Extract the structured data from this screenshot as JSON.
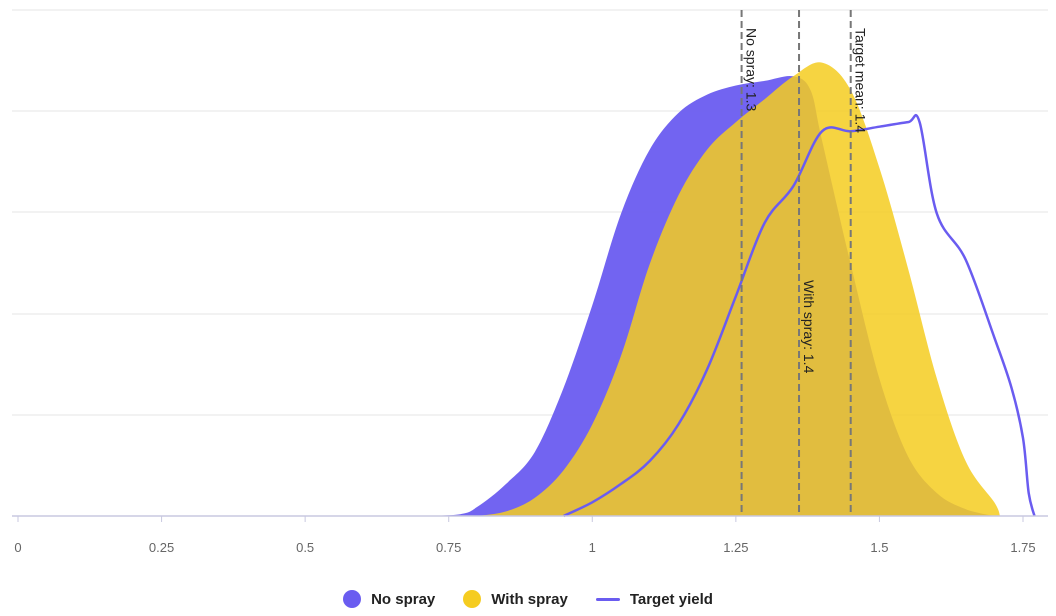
{
  "chart_data": {
    "type": "area",
    "xlim": [
      0,
      1.8
    ],
    "x_ticks": [
      {
        "value": 0,
        "label": "0"
      },
      {
        "value": 0.25,
        "label": "0.25"
      },
      {
        "value": 0.5,
        "label": "0.5"
      },
      {
        "value": 0.75,
        "label": "0.75"
      },
      {
        "value": 1,
        "label": "1"
      },
      {
        "value": 1.25,
        "label": "1.25"
      },
      {
        "value": 1.5,
        "label": "1.5"
      },
      {
        "value": 1.75,
        "label": "1.75"
      }
    ],
    "ylim": [
      0,
      1
    ],
    "grid": true,
    "legend_position": "bottom",
    "series": [
      {
        "name": "No spray",
        "style": "filled-area",
        "color": "#6a5cf0",
        "x": [
          0.7,
          0.77,
          0.8,
          0.85,
          0.9,
          0.95,
          1.0,
          1.05,
          1.1,
          1.15,
          1.2,
          1.25,
          1.3,
          1.35,
          1.38,
          1.4,
          1.45,
          1.5,
          1.55,
          1.6,
          1.65,
          1.7
        ],
        "y": [
          0.0,
          0.004,
          0.02,
          0.07,
          0.14,
          0.28,
          0.46,
          0.66,
          0.8,
          0.88,
          0.92,
          0.94,
          0.95,
          0.96,
          0.93,
          0.82,
          0.55,
          0.3,
          0.13,
          0.05,
          0.015,
          0.0
        ]
      },
      {
        "name": "With spray",
        "style": "filled-area",
        "color": "#f5cc20",
        "x": [
          0.8,
          0.85,
          0.9,
          0.95,
          1.0,
          1.05,
          1.1,
          1.15,
          1.2,
          1.25,
          1.3,
          1.35,
          1.4,
          1.45,
          1.5,
          1.55,
          1.6,
          1.65,
          1.7,
          1.71
        ],
        "y": [
          0.0,
          0.01,
          0.04,
          0.1,
          0.2,
          0.35,
          0.55,
          0.7,
          0.8,
          0.86,
          0.91,
          0.96,
          0.99,
          0.93,
          0.76,
          0.54,
          0.3,
          0.12,
          0.03,
          0.0
        ]
      },
      {
        "name": "Target yield",
        "style": "line",
        "color": "#6a5cf0",
        "x": [
          0.95,
          1.0,
          1.05,
          1.1,
          1.15,
          1.2,
          1.25,
          1.3,
          1.35,
          1.4,
          1.45,
          1.5,
          1.55,
          1.57,
          1.6,
          1.65,
          1.7,
          1.73,
          1.75,
          1.76,
          1.77
        ],
        "y": [
          0.0,
          0.03,
          0.07,
          0.12,
          0.2,
          0.32,
          0.48,
          0.64,
          0.72,
          0.84,
          0.84,
          0.85,
          0.86,
          0.86,
          0.66,
          0.56,
          0.39,
          0.28,
          0.17,
          0.05,
          0.0
        ]
      }
    ],
    "reference_lines": [
      {
        "x": 1.26,
        "label": "No spray: 1.3",
        "label_side": "right",
        "label_anchor": "top"
      },
      {
        "x": 1.36,
        "label": "With spray: 1.4",
        "label_side": "right",
        "label_anchor": "middle"
      },
      {
        "x": 1.45,
        "label": "Target mean: 1.4",
        "label_side": "right",
        "label_anchor": "top"
      }
    ]
  },
  "legend": {
    "items": [
      {
        "label": "No spray",
        "color": "#6a5cf0",
        "kind": "dot"
      },
      {
        "label": "With spray",
        "color": "#f5cc20",
        "kind": "dot"
      },
      {
        "label": "Target yield",
        "color": "#6a5cf0",
        "kind": "line"
      }
    ]
  }
}
